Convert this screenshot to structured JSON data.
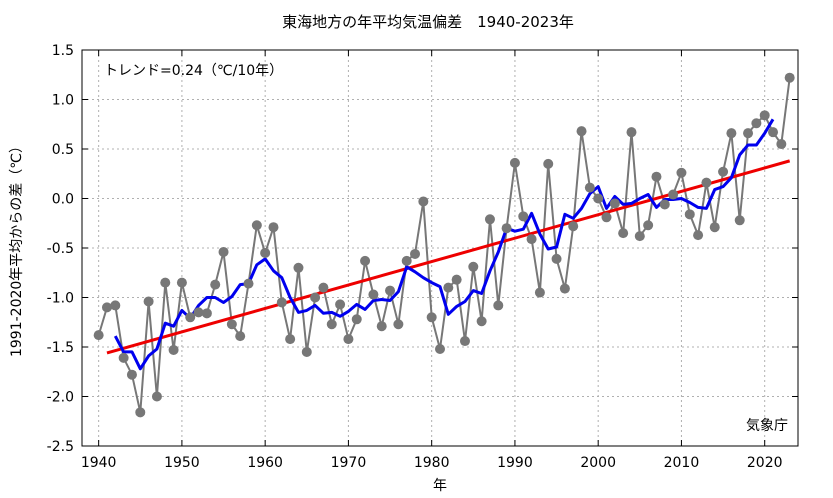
{
  "chart_data": {
    "type": "line",
    "title": "東海地方の年平均気温偏差　1940-2023年",
    "xlabel": "年",
    "ylabel": "1991-2020年平均からの差（℃）",
    "annotation": "トレンド=0.24（℃/10年）",
    "credit": "気象庁",
    "xlim": [
      1938,
      2024
    ],
    "ylim": [
      -2.5,
      1.5
    ],
    "xticks": [
      1940,
      1950,
      1960,
      1970,
      1980,
      1990,
      2000,
      2010,
      2020
    ],
    "yticks": [
      -2.5,
      -2.0,
      -1.5,
      -1.0,
      -0.5,
      0.0,
      0.5,
      1.0,
      1.5
    ],
    "ytick_labels": [
      "-2.5",
      "-2.0",
      "-1.5",
      "-1.0",
      "-0.5",
      "0.0",
      "0.5",
      "1.0",
      "1.5"
    ],
    "grid": true,
    "colors": {
      "annual": "#777777",
      "moving_avg": "#0000ee",
      "trend": "#ee0000"
    },
    "annual": {
      "x": [
        1940,
        1941,
        1942,
        1943,
        1944,
        1945,
        1946,
        1947,
        1948,
        1949,
        1950,
        1951,
        1952,
        1953,
        1954,
        1955,
        1956,
        1957,
        1958,
        1959,
        1960,
        1961,
        1962,
        1963,
        1964,
        1965,
        1966,
        1967,
        1968,
        1969,
        1970,
        1971,
        1972,
        1973,
        1974,
        1975,
        1976,
        1977,
        1978,
        1979,
        1980,
        1981,
        1982,
        1983,
        1984,
        1985,
        1986,
        1987,
        1988,
        1989,
        1990,
        1991,
        1992,
        1993,
        1994,
        1995,
        1996,
        1997,
        1998,
        1999,
        2000,
        2001,
        2002,
        2003,
        2004,
        2005,
        2006,
        2007,
        2008,
        2009,
        2010,
        2011,
        2012,
        2013,
        2014,
        2015,
        2016,
        2017,
        2018,
        2019,
        2020,
        2021,
        2022,
        2023
      ],
      "y": [
        -1.38,
        -1.1,
        -1.08,
        -1.61,
        -1.78,
        -2.16,
        -1.04,
        -2.0,
        -0.85,
        -1.53,
        -0.85,
        -1.2,
        -1.15,
        -1.16,
        -0.87,
        -0.54,
        -1.27,
        -1.39,
        -0.86,
        -0.27,
        -0.55,
        -0.29,
        -1.05,
        -1.42,
        -0.7,
        -1.55,
        -1.0,
        -0.9,
        -1.27,
        -1.07,
        -1.42,
        -1.22,
        -0.63,
        -0.97,
        -1.29,
        -0.93,
        -1.27,
        -0.63,
        -0.56,
        -0.03,
        -1.2,
        -1.52,
        -0.9,
        -0.82,
        -1.44,
        -0.69,
        -1.24,
        -0.21,
        -1.08,
        -0.3,
        0.36,
        -0.18,
        -0.41,
        -0.95,
        0.35,
        -0.61,
        -0.91,
        -0.28,
        0.68,
        0.11,
        0.0,
        -0.19,
        -0.05,
        -0.35,
        0.67,
        -0.38,
        -0.27,
        0.22,
        -0.06,
        0.04,
        0.26,
        -0.16,
        -0.37,
        0.16,
        -0.29,
        0.27,
        0.66,
        -0.22,
        0.66,
        0.76,
        0.84,
        0.67,
        0.55,
        1.22
      ]
    },
    "moving_avg": {
      "x": [
        1942,
        1943,
        1944,
        1945,
        1946,
        1947,
        1948,
        1949,
        1950,
        1951,
        1952,
        1953,
        1954,
        1955,
        1956,
        1957,
        1958,
        1959,
        1960,
        1961,
        1962,
        1963,
        1964,
        1965,
        1966,
        1967,
        1968,
        1969,
        1970,
        1971,
        1972,
        1973,
        1974,
        1975,
        1976,
        1977,
        1978,
        1979,
        1980,
        1981,
        1982,
        1983,
        1984,
        1985,
        1986,
        1987,
        1988,
        1989,
        1990,
        1991,
        1992,
        1993,
        1994,
        1995,
        1996,
        1997,
        1998,
        1999,
        2000,
        2001,
        2002,
        2003,
        2004,
        2005,
        2006,
        2007,
        2008,
        2009,
        2010,
        2011,
        2012,
        2013,
        2014,
        2015,
        2016,
        2017,
        2018,
        2019,
        2020,
        2021
      ],
      "y": [
        -1.39,
        -1.55,
        -1.55,
        -1.72,
        -1.59,
        -1.52,
        -1.26,
        -1.29,
        -1.13,
        -1.21,
        -1.08,
        -1.0,
        -1.0,
        -1.05,
        -0.99,
        -0.87,
        -0.86,
        -0.67,
        -0.61,
        -0.73,
        -0.8,
        -1.0,
        -1.15,
        -1.13,
        -1.08,
        -1.16,
        -1.15,
        -1.19,
        -1.14,
        -1.07,
        -1.12,
        -1.03,
        -1.02,
        -1.03,
        -0.94,
        -0.69,
        -0.74,
        -0.8,
        -0.85,
        -0.89,
        -1.17,
        -1.09,
        -1.04,
        -0.93,
        -0.96,
        -0.73,
        -0.54,
        -0.3,
        -0.33,
        -0.31,
        -0.15,
        -0.36,
        -0.51,
        -0.49,
        -0.16,
        -0.2,
        -0.1,
        0.05,
        0.12,
        -0.1,
        0.02,
        -0.06,
        -0.05,
        0.0,
        0.04,
        -0.09,
        -0.01,
        -0.01,
        0.0,
        -0.04,
        -0.09,
        -0.1,
        0.09,
        0.12,
        0.21,
        0.44,
        0.54,
        0.54,
        0.66,
        0.8
      ]
    },
    "trend": {
      "x": [
        1941,
        2023
      ],
      "y": [
        -1.56,
        0.38
      ]
    }
  }
}
